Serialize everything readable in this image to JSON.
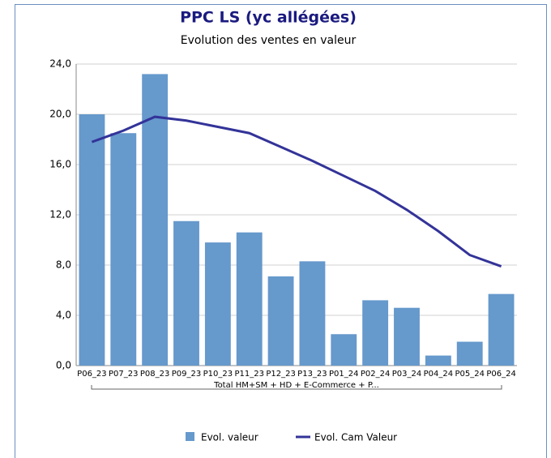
{
  "chart_data": {
    "type": "bar",
    "title": "PPC LS (yc allégées)",
    "subtitle": "Evolution des ventes en valeur",
    "categories": [
      "P06_23",
      "P07_23",
      "P08_23",
      "P09_23",
      "P10_23",
      "P11_23",
      "P12_23",
      "P13_23",
      "P01_24",
      "P02_24",
      "P03_24",
      "P04_24",
      "P05_24",
      "P06_24"
    ],
    "group_label": "Total HM+SM + HD + E-Commerce + P...",
    "series": [
      {
        "name": "Evol.  valeur",
        "type": "bar",
        "color": "#6699cc",
        "values": [
          20.0,
          18.5,
          23.2,
          11.5,
          9.8,
          10.6,
          7.1,
          8.3,
          2.5,
          5.2,
          4.6,
          0.8,
          1.9,
          5.7
        ]
      },
      {
        "name": "Evol. Cam Valeur",
        "type": "line",
        "color": "#333399",
        "values": [
          17.8,
          18.7,
          19.8,
          19.5,
          19.0,
          18.5,
          17.4,
          16.3,
          15.1,
          13.9,
          12.4,
          10.7,
          8.8,
          7.9
        ]
      }
    ],
    "ylim": [
      0,
      24
    ],
    "yticks": [
      {
        "value": 0,
        "label": "0,0"
      },
      {
        "value": 4,
        "label": "4,0"
      },
      {
        "value": 8,
        "label": "8,0"
      },
      {
        "value": 12,
        "label": "12,0"
      },
      {
        "value": 16,
        "label": "16,0"
      },
      {
        "value": 20,
        "label": "20,0"
      },
      {
        "value": 24,
        "label": "24,0"
      }
    ],
    "grid": true,
    "legend": "bottom"
  }
}
